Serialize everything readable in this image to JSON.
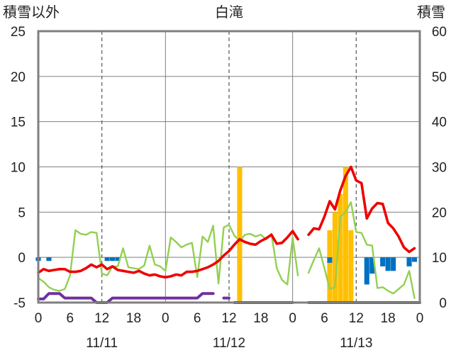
{
  "chart_data": {
    "type": "bar+line",
    "title": "白滝",
    "ylabel_left": "積雪以外",
    "ylabel_right": "積雪",
    "ylim_left": [
      -5,
      25
    ],
    "ylim_right": [
      0,
      60
    ],
    "yticks_left": [
      "-5",
      "0",
      "5",
      "10",
      "15",
      "20",
      "25"
    ],
    "yticks_right": [
      "0",
      "10",
      "20",
      "30",
      "40",
      "50",
      "60"
    ],
    "xticks": [
      "0",
      "6",
      "12",
      "18",
      "0",
      "6",
      "12",
      "18",
      "0",
      "6",
      "12",
      "18",
      "0"
    ],
    "xtick_hours": [
      0,
      6,
      12,
      18,
      24,
      30,
      36,
      42,
      48,
      54,
      60,
      66,
      72
    ],
    "date_labels": [
      "11/11",
      "11/12",
      "11/13"
    ],
    "x_unit": "hours since 11/11 0:00",
    "colors": {
      "temperature": "#ee0000",
      "line_green": "#92d050",
      "snowfall_bars": "#ffc000",
      "blue_bars": "#0070c0",
      "purple_line": "#7030a0",
      "frame": "#7f7f7f"
    },
    "series": [
      {
        "name": "",
        "kind": "line",
        "axis": "left",
        "x": [
          0,
          1,
          2,
          3,
          4,
          5,
          6,
          7,
          8,
          9,
          10,
          11,
          12,
          13,
          14,
          15,
          16,
          17,
          18,
          19,
          20,
          21,
          22,
          23,
          24,
          25,
          26,
          27,
          28,
          29,
          30,
          31,
          32,
          33,
          34,
          35,
          36,
          37,
          38,
          39,
          40,
          41,
          42,
          43,
          44,
          45,
          46,
          47,
          48,
          49,
          51,
          52,
          53,
          54,
          55,
          56,
          57,
          58,
          59,
          60,
          61,
          62,
          63,
          64,
          65,
          66,
          67,
          68,
          69,
          70,
          71
        ],
        "y": [
          -1.7,
          -1.3,
          -1.5,
          -1.4,
          -1.3,
          -1.3,
          -1.6,
          -1.6,
          -1.5,
          -1.2,
          -0.8,
          -1.1,
          -0.8,
          -1.3,
          -1.0,
          -1.4,
          -1.5,
          -1.6,
          -1.7,
          -1.5,
          -1.8,
          -2.0,
          -1.9,
          -2.1,
          -2.2,
          -2.1,
          -1.9,
          -2.0,
          -1.6,
          -1.6,
          -1.5,
          -1.3,
          -1.1,
          -0.8,
          -0.4,
          0.2,
          0.7,
          1.4,
          2.0,
          1.7,
          1.5,
          1.4,
          1.8,
          2.1,
          2.5,
          1.5,
          1.6,
          2.2,
          2.9,
          2.0,
          2.5,
          3.2,
          3.1,
          4.5,
          6.2,
          5.3,
          7.4,
          9.0,
          10.0,
          8.5,
          8.2,
          4.3,
          5.4,
          6.0,
          5.9,
          3.8,
          3.2,
          2.3,
          1.1,
          0.6,
          1.0
        ]
      },
      {
        "name": "",
        "kind": "line",
        "axis": "left",
        "x": [
          0,
          1,
          2,
          3,
          4,
          5,
          6,
          7,
          8,
          9,
          10,
          11,
          12,
          13,
          14,
          15,
          16,
          17,
          18,
          19,
          20,
          21,
          22,
          23,
          24,
          25,
          26,
          27,
          28,
          29,
          30,
          31,
          32,
          33,
          34,
          35,
          36,
          37,
          38,
          39,
          40,
          41,
          42,
          43,
          44,
          45,
          46,
          47,
          48,
          49,
          51,
          52,
          53,
          54,
          55,
          56,
          57,
          58,
          59,
          60,
          61,
          62,
          63,
          64,
          65,
          66,
          67,
          68,
          69,
          70,
          71
        ],
        "y": [
          -2.3,
          -2.7,
          -3.3,
          -3.6,
          -3.7,
          -3.5,
          -2.0,
          3.0,
          2.6,
          2.5,
          2.8,
          2.7,
          -1.8,
          -2.0,
          -1.0,
          -1.0,
          1.0,
          -1.1,
          -1.2,
          -1.3,
          -0.9,
          1.3,
          -0.8,
          -1.0,
          -1.5,
          2.2,
          1.7,
          1.1,
          1.4,
          1.6,
          -2.2,
          2.3,
          1.7,
          3.5,
          -2.9,
          3.3,
          3.6,
          2.4,
          1.8,
          2.5,
          2.6,
          2.3,
          2.5,
          2.0,
          2.6,
          -1.2,
          -2.5,
          -3.0,
          2.2,
          -2.0,
          -1.7,
          -0.3,
          1.0,
          -1.2,
          -3.5,
          -3.3,
          4.5,
          5.0,
          6.1,
          2.8,
          2.7,
          1.4,
          1.3,
          -3.4,
          -3.3,
          -3.7,
          -4.0,
          -3.5,
          -3.0,
          -1.5,
          -4.5
        ]
      },
      {
        "name": "",
        "kind": "bar",
        "axis": "right",
        "x": [
          48,
          49,
          50,
          51,
          52,
          53,
          54,
          55,
          56,
          57,
          58,
          59,
          60,
          61,
          62,
          63,
          64,
          65,
          66,
          67,
          68,
          69,
          70,
          71,
          36,
          37,
          38,
          39,
          40,
          41,
          42,
          43,
          44,
          45,
          46,
          47
        ],
        "y": [
          0,
          0,
          0,
          0,
          0,
          0,
          0,
          0,
          0,
          0,
          0,
          0,
          0,
          0,
          0,
          0,
          0,
          0,
          0,
          0,
          0,
          0,
          0,
          0,
          0,
          0,
          0,
          0,
          0,
          0,
          0,
          0,
          0,
          0,
          0,
          0
        ]
      }
    ],
    "snowfall_bars_right_axis": [
      {
        "x": 38,
        "y": 30
      },
      {
        "x": 55,
        "y": 16
      },
      {
        "x": 56,
        "y": 20
      },
      {
        "x": 57,
        "y": 24
      },
      {
        "x": 58,
        "y": 30
      },
      {
        "x": 59,
        "y": 16
      }
    ],
    "blue_bars_left_axis": [
      {
        "x": 0,
        "y": -0.4
      },
      {
        "x": 2,
        "y": -0.4
      },
      {
        "x": 13,
        "y": -0.4
      },
      {
        "x": 14,
        "y": -0.4
      },
      {
        "x": 15,
        "y": -0.4
      },
      {
        "x": 55,
        "y": -0.6
      },
      {
        "x": 62,
        "y": -3.0
      },
      {
        "x": 63,
        "y": -1.8
      },
      {
        "x": 65,
        "y": -1.0
      },
      {
        "x": 66,
        "y": -1.5
      },
      {
        "x": 67,
        "y": -1.5
      },
      {
        "x": 70,
        "y": -1.0
      },
      {
        "x": 71,
        "y": -0.5
      }
    ],
    "purple_line_left_axis": {
      "segments": [
        {
          "x": [
            0,
            1,
            2,
            3,
            4,
            5,
            6,
            7,
            8,
            9,
            10,
            11,
            12,
            13,
            14,
            15,
            16,
            17,
            18,
            19,
            20,
            21,
            22,
            23,
            24,
            25,
            26,
            27,
            28,
            29,
            30,
            31,
            32,
            33
          ],
          "y": [
            -4.6,
            -4.6,
            -4.0,
            -4.0,
            -4.0,
            -4.5,
            -4.5,
            -4.5,
            -4.5,
            -4.5,
            -4.5,
            -5.0,
            -5.0,
            -5.0,
            -4.5,
            -4.5,
            -4.5,
            -4.5,
            -4.5,
            -4.5,
            -4.5,
            -4.5,
            -4.5,
            -4.5,
            -4.5,
            -4.5,
            -4.5,
            -4.5,
            -4.5,
            -4.5,
            -4.5,
            -4.0,
            -4.0,
            -4.0
          ]
        },
        {
          "x": [
            35,
            36
          ],
          "y": [
            -4.5,
            -4.5
          ]
        },
        {
          "x": [
            37,
            38,
            39,
            40,
            41,
            42,
            43,
            44,
            45,
            46,
            47,
            48
          ],
          "y": [
            -5,
            -5,
            -5,
            -5,
            -5,
            -5,
            -5,
            -5,
            -5,
            -5,
            -5,
            -5
          ]
        },
        {
          "x": [
            51,
            52,
            53,
            54,
            55,
            56,
            57,
            58,
            59,
            60,
            61,
            62,
            63,
            64,
            65,
            66,
            67,
            68,
            69,
            70,
            71,
            72
          ],
          "y": [
            -5,
            -5,
            -5,
            -5,
            -5,
            -5,
            -5,
            -5,
            -5,
            -5,
            -5,
            -5,
            -5,
            -5,
            -5,
            -5,
            -5,
            -5,
            -5,
            -5,
            -5,
            -5
          ]
        }
      ]
    }
  }
}
